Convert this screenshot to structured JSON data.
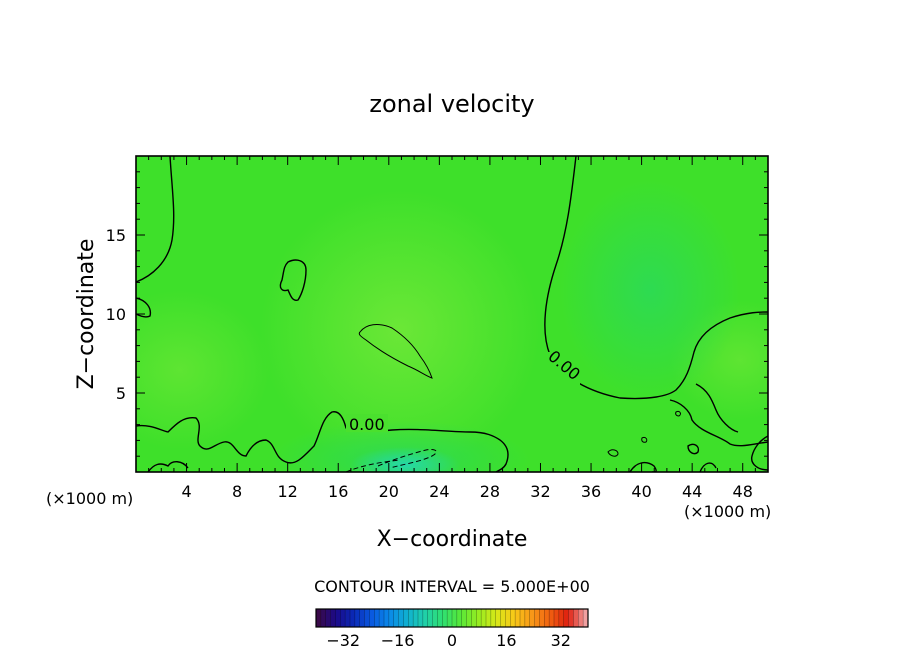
{
  "chart_data": {
    "type": "heatmap",
    "title": "zonal velocity",
    "xlabel": "X−coordinate",
    "ylabel": "Z−coordinate",
    "x_unit_left": "(×1000 m)",
    "x_unit_right": "(×1000 m)",
    "xlim": [
      0,
      50
    ],
    "ylim": [
      0,
      20
    ],
    "x_ticks": [
      4,
      8,
      12,
      16,
      20,
      24,
      28,
      32,
      36,
      40,
      44,
      48
    ],
    "y_ticks": [
      5,
      10,
      15
    ],
    "contour_label_1": "0.00",
    "contour_label_2": "0.00",
    "contour_interval_text": "CONTOUR INTERVAL = 5.000E+00",
    "colorbar": {
      "range": [
        -40,
        40
      ],
      "ticks": [
        -32,
        -16,
        0,
        16,
        32
      ],
      "tick_labels": [
        "−32",
        "−16",
        "0",
        "16",
        "32"
      ],
      "colors": [
        "#3a0a4a",
        "#1a0a8a",
        "#0a2ab8",
        "#0a5ae0",
        "#0a8ae8",
        "#10b0d0",
        "#20d0a8",
        "#30e070",
        "#58e838",
        "#98ec20",
        "#d8e818",
        "#f8c818",
        "#f89818",
        "#f06010",
        "#e02010",
        "#f0a0a0"
      ]
    },
    "field_colors": {
      "base": "#3ee02a",
      "warm": "#62e634",
      "cool": "#30dc52",
      "cold": "#28d8a0"
    }
  }
}
